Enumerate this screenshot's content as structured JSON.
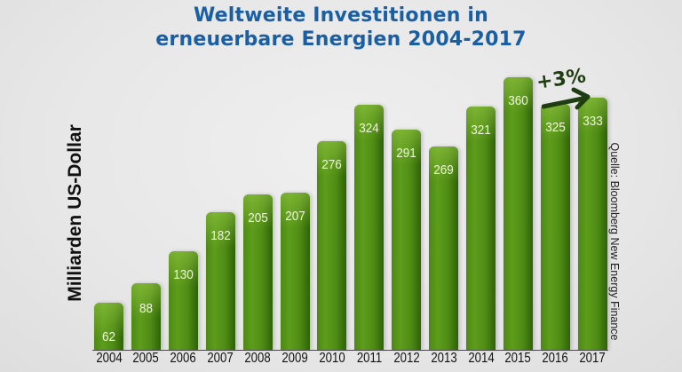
{
  "title": {
    "line1": "Weltweite Investitionen in",
    "line2": "erneuerbare Energien 2004-2017"
  },
  "y_axis_label": "Milliarden US-Dollar",
  "source_note": "Quelle: Bloomberg New Energy Finance",
  "annotation": {
    "text": "+3%",
    "arrow": "arrow-right-icon"
  },
  "colors": {
    "title": "#1a5fa3",
    "bar": "#4f8c15",
    "bar_dark": "#2f6208",
    "bar_label": "#eef5dc",
    "background": "#e9e9e9",
    "annotation": "#1e3d10"
  },
  "bars": [
    {
      "year": "2004",
      "label": "62"
    },
    {
      "year": "2005",
      "label": "88"
    },
    {
      "year": "2006",
      "label": "130"
    },
    {
      "year": "2007",
      "label": "182"
    },
    {
      "year": "2008",
      "label": "205"
    },
    {
      "year": "2009",
      "label": "207"
    },
    {
      "year": "2010",
      "label": "276"
    },
    {
      "year": "2011",
      "label": "324"
    },
    {
      "year": "2012",
      "label": "291"
    },
    {
      "year": "2013",
      "label": "269"
    },
    {
      "year": "2014",
      "label": "321"
    },
    {
      "year": "2015",
      "label": "360"
    },
    {
      "year": "2016",
      "label": "325"
    },
    {
      "year": "2017",
      "label": "333"
    }
  ],
  "chart_data": {
    "type": "bar",
    "title": "Weltweite Investitionen in erneuerbare Energien 2004-2017",
    "xlabel": "",
    "ylabel": "Milliarden US-Dollar",
    "categories": [
      "2004",
      "2005",
      "2006",
      "2007",
      "2008",
      "2009",
      "2010",
      "2011",
      "2012",
      "2013",
      "2014",
      "2015",
      "2016",
      "2017"
    ],
    "values": [
      62,
      88,
      130,
      182,
      205,
      207,
      276,
      324,
      291,
      269,
      321,
      360,
      325,
      333
    ],
    "ylim": [
      0,
      380
    ],
    "grid": false,
    "legend": null,
    "data_labels": true,
    "annotations": [
      {
        "text": "+3%",
        "from": "2016",
        "to": "2017",
        "type": "arrow"
      },
      {
        "text": "Quelle: Bloomberg New Energy Finance",
        "position": "right, vertical"
      }
    ]
  }
}
